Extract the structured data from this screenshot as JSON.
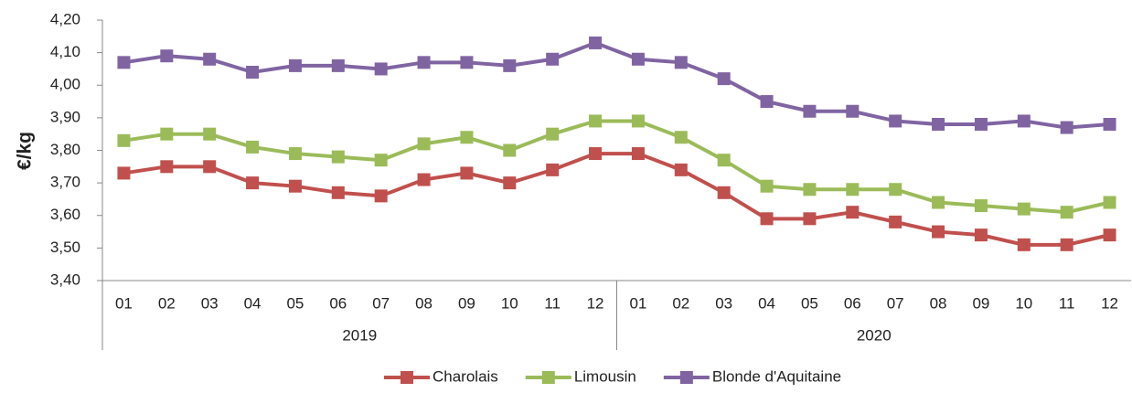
{
  "chart_data": {
    "type": "line",
    "y_label": "€/kg",
    "groups": [
      {
        "label": "2019",
        "categories": [
          "01",
          "02",
          "03",
          "04",
          "05",
          "06",
          "07",
          "08",
          "09",
          "10",
          "11",
          "12"
        ]
      },
      {
        "label": "2020",
        "categories": [
          "01",
          "02",
          "03",
          "04",
          "05",
          "06",
          "07",
          "08",
          "09",
          "10",
          "11",
          "12"
        ]
      }
    ],
    "ylim": [
      3.4,
      4.2
    ],
    "yticks": [
      {
        "value": 3.4,
        "label": "3,40"
      },
      {
        "value": 3.5,
        "label": "3,50"
      },
      {
        "value": 3.6,
        "label": "3,60"
      },
      {
        "value": 3.7,
        "label": "3,70"
      },
      {
        "value": 3.8,
        "label": "3,80"
      },
      {
        "value": 3.9,
        "label": "3,90"
      },
      {
        "value": 4.0,
        "label": "4,00"
      },
      {
        "value": 4.1,
        "label": "4,10"
      },
      {
        "value": 4.2,
        "label": "4,20"
      }
    ],
    "legend": "bottom",
    "series": [
      {
        "name": "Charolais",
        "color": "#c0504d",
        "values": [
          3.73,
          3.75,
          3.75,
          3.7,
          3.69,
          3.67,
          3.66,
          3.71,
          3.73,
          3.7,
          3.74,
          3.79,
          3.79,
          3.74,
          3.67,
          3.59,
          3.59,
          3.61,
          3.58,
          3.55,
          3.54,
          3.51,
          3.51,
          3.54
        ]
      },
      {
        "name": "Limousin",
        "color": "#9bbb59",
        "values": [
          3.83,
          3.85,
          3.85,
          3.81,
          3.79,
          3.78,
          3.77,
          3.82,
          3.84,
          3.8,
          3.85,
          3.89,
          3.89,
          3.84,
          3.77,
          3.69,
          3.68,
          3.68,
          3.68,
          3.64,
          3.63,
          3.62,
          3.61,
          3.64
        ]
      },
      {
        "name": "Blonde d'Aquitaine",
        "color": "#8064a2",
        "values": [
          4.07,
          4.09,
          4.08,
          4.04,
          4.06,
          4.06,
          4.05,
          4.07,
          4.07,
          4.06,
          4.08,
          4.13,
          4.08,
          4.07,
          4.02,
          3.95,
          3.92,
          3.92,
          3.89,
          3.88,
          3.88,
          3.89,
          3.87,
          3.88
        ]
      }
    ]
  }
}
